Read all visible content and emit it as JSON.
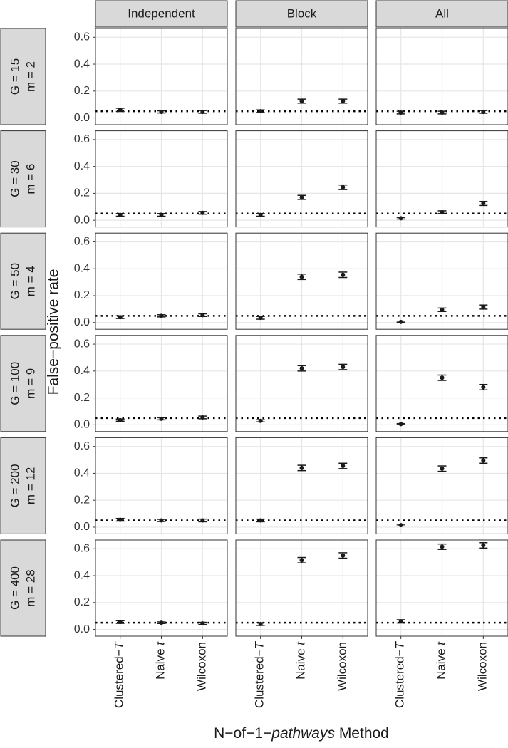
{
  "chart_data": {
    "type": "errorbar",
    "y_label": "False−positive rate",
    "x_label": [
      "N−of−1−",
      "pathways",
      " Method"
    ],
    "columns": [
      "Independent",
      "Block",
      "All"
    ],
    "categories": [
      [
        "Clustered−",
        "T"
      ],
      [
        "Naive ",
        "t"
      ],
      [
        "Wilcoxon"
      ]
    ],
    "reference_line": 0.05,
    "color": "#1a1a1a",
    "grid": true,
    "ylim": [
      -0.05,
      0.665
    ],
    "yticks": [
      {
        "value": 0,
        "label": "0.0"
      },
      0.2,
      0.4,
      0.6
    ],
    "rows": [
      {
        "label": [
          "G = 15",
          "m = 2"
        ],
        "panels": [
          {
            "values": [
              0.06,
              0.045,
              0.045
            ],
            "errors": [
              0.012,
              0.008,
              0.01
            ]
          },
          {
            "values": [
              0.05,
              0.125,
              0.125
            ],
            "errors": [
              0.01,
              0.015,
              0.015
            ]
          },
          {
            "values": [
              0.04,
              0.04,
              0.045
            ],
            "errors": [
              0.01,
              0.01,
              0.01
            ]
          }
        ]
      },
      {
        "label": [
          "G = 30",
          "m = 6"
        ],
        "panels": [
          {
            "values": [
              0.04,
              0.04,
              0.055
            ],
            "errors": [
              0.01,
              0.01,
              0.01
            ]
          },
          {
            "values": [
              0.04,
              0.17,
              0.245
            ],
            "errors": [
              0.01,
              0.015,
              0.017
            ]
          },
          {
            "values": [
              0.015,
              0.06,
              0.125
            ],
            "errors": [
              0.006,
              0.01,
              0.015
            ]
          }
        ]
      },
      {
        "label": [
          "G = 50",
          "m = 4"
        ],
        "panels": [
          {
            "values": [
              0.04,
              0.05,
              0.055
            ],
            "errors": [
              0.01,
              0.008,
              0.01
            ]
          },
          {
            "values": [
              0.035,
              0.34,
              0.355
            ],
            "errors": [
              0.01,
              0.02,
              0.02
            ]
          },
          {
            "values": [
              0.005,
              0.095,
              0.115
            ],
            "errors": [
              0.005,
              0.013,
              0.015
            ]
          }
        ]
      },
      {
        "label": [
          "G = 100",
          "m = 9"
        ],
        "panels": [
          {
            "values": [
              0.035,
              0.045,
              0.055
            ],
            "errors": [
              0.008,
              0.008,
              0.01
            ]
          },
          {
            "values": [
              0.03,
              0.42,
              0.43
            ],
            "errors": [
              0.008,
              0.02,
              0.02
            ]
          },
          {
            "values": [
              0.005,
              0.35,
              0.28
            ],
            "errors": [
              0.004,
              0.02,
              0.02
            ]
          }
        ]
      },
      {
        "label": [
          "G = 200",
          "m = 12"
        ],
        "panels": [
          {
            "values": [
              0.055,
              0.05,
              0.05
            ],
            "errors": [
              0.01,
              0.008,
              0.01
            ]
          },
          {
            "values": [
              0.05,
              0.44,
              0.455
            ],
            "errors": [
              0.01,
              0.02,
              0.02
            ]
          },
          {
            "values": [
              0.015,
              0.435,
              0.495
            ],
            "errors": [
              0.006,
              0.02,
              0.02
            ]
          }
        ]
      },
      {
        "label": [
          "G = 400",
          "m = 28"
        ],
        "panels": [
          {
            "values": [
              0.055,
              0.05,
              0.045
            ],
            "errors": [
              0.01,
              0.006,
              0.008
            ]
          },
          {
            "values": [
              0.04,
              0.515,
              0.55
            ],
            "errors": [
              0.01,
              0.02,
              0.02
            ]
          },
          {
            "values": [
              0.06,
              0.615,
              0.625
            ],
            "errors": [
              0.012,
              0.02,
              0.02
            ]
          }
        ]
      }
    ]
  }
}
